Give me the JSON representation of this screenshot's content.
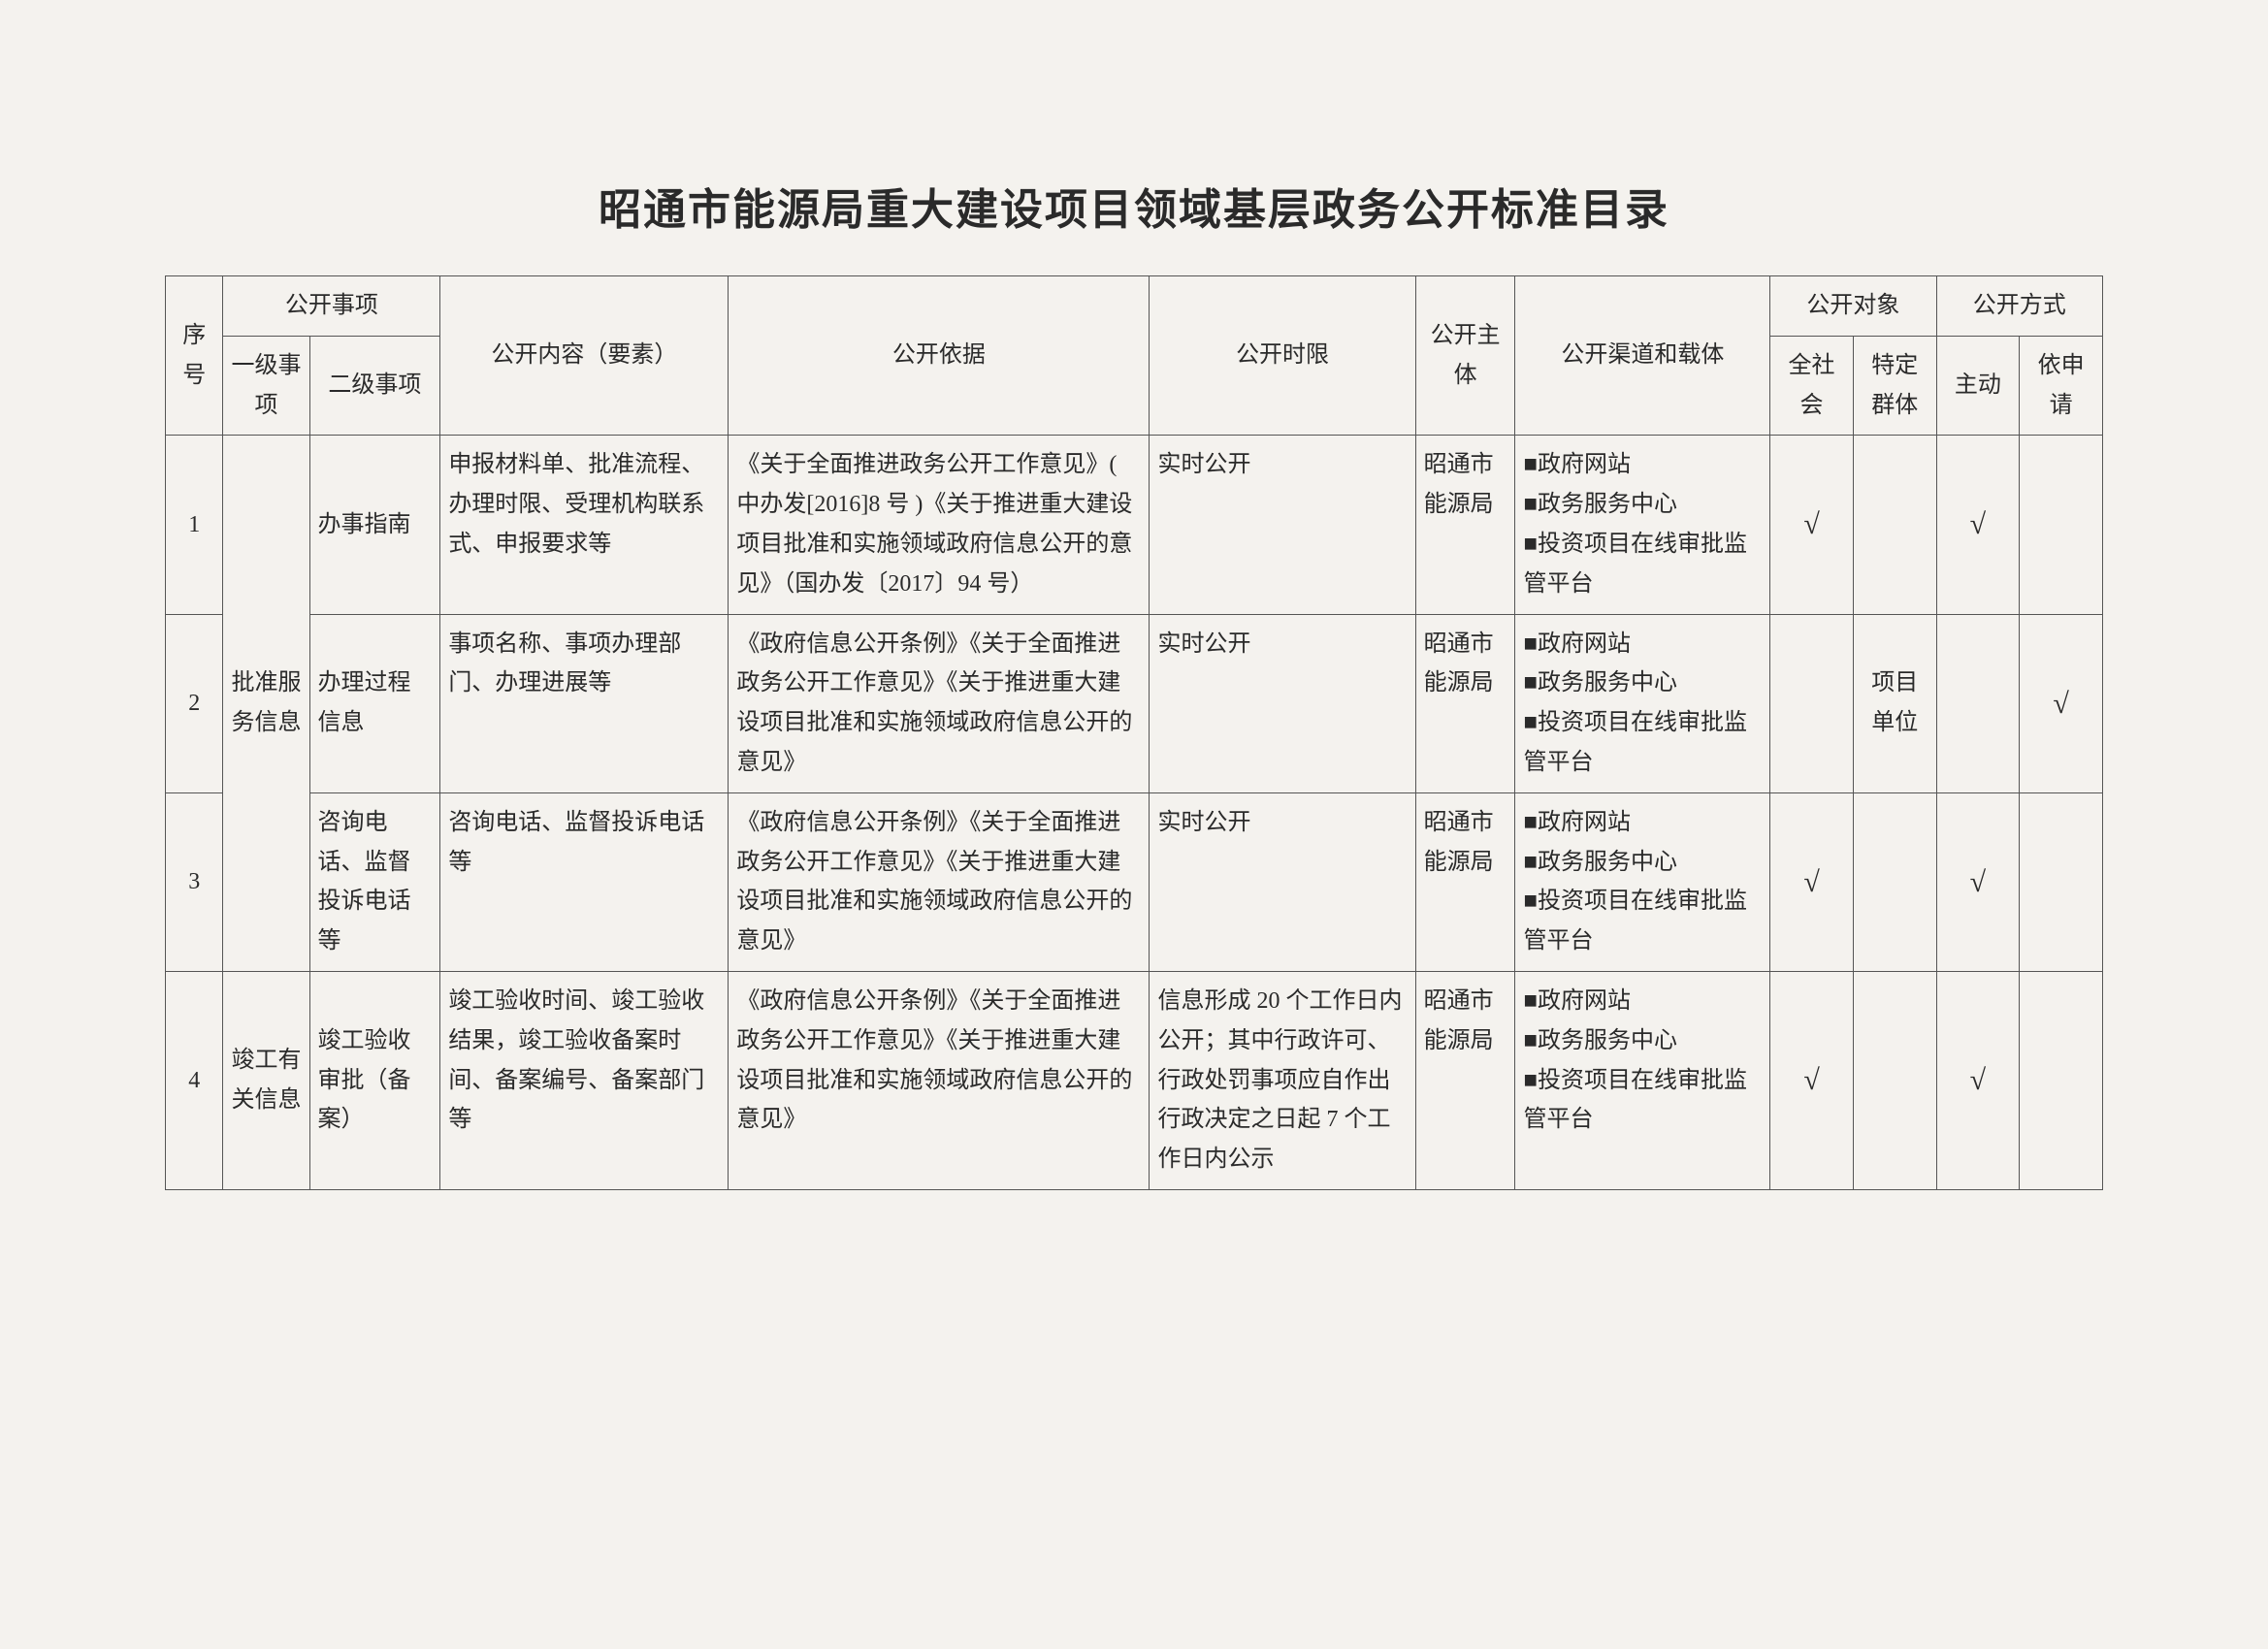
{
  "title": "昭通市能源局重大建设项目领域基层政务公开标准目录",
  "headers": {
    "seq": "序号",
    "matters": "公开事项",
    "lvl1": "一级事项",
    "lvl2": "二级事项",
    "content": "公开内容（要素）",
    "basis": "公开依据",
    "timelimit": "公开时限",
    "subject": "公开主体",
    "channel": "公开渠道和载体",
    "audience": "公开对象",
    "aud_all": "全社会",
    "aud_spec": "特定群体",
    "mode": "公开方式",
    "mode_active": "主动",
    "mode_apply": "依申请"
  },
  "checkmark": "√",
  "lvl1_group1": "批准服务信息",
  "lvl1_group2": "竣工有关信息",
  "subject_common": "昭通市能源局",
  "channel_common": "■政府网站\n■政务服务中心\n■投资项目在线审批监管平台",
  "rows": [
    {
      "seq": "1",
      "lvl2": "办事指南",
      "content": "申报材料单、批准流程、办理时限、受理机构联系式、申报要求等",
      "basis": "《关于全面推进政务公开工作意见》( 中办发[2016]8 号 )《关于推进重大建设项目批准和实施领域政府信息公开的意见》（国办发〔2017〕94 号）",
      "timelimit": "实时公开",
      "aud_all": "√",
      "aud_spec": "",
      "mode_active": "√",
      "mode_apply": ""
    },
    {
      "seq": "2",
      "lvl2": "办理过程信息",
      "content": "事项名称、事项办理部门、办理进展等",
      "basis": "《政府信息公开条例》《关于全面推进政务公开工作意见》《关于推进重大建设项目批准和实施领域政府信息公开的意见》",
      "timelimit": "实时公开",
      "aud_all": "",
      "aud_spec": "项目单位",
      "mode_active": "",
      "mode_apply": "√"
    },
    {
      "seq": "3",
      "lvl2": "咨询电话、监督投诉电话等",
      "content": "咨询电话、监督投诉电话等",
      "basis": "《政府信息公开条例》《关于全面推进政务公开工作意见》《关于推进重大建设项目批准和实施领域政府信息公开的意见》",
      "timelimit": "实时公开",
      "aud_all": "√",
      "aud_spec": "",
      "mode_active": "√",
      "mode_apply": ""
    },
    {
      "seq": "4",
      "lvl2": "竣工验收审批（备案）",
      "content": "竣工验收时间、竣工验收结果，竣工验收备案时间、备案编号、备案部门等",
      "basis": "《政府信息公开条例》《关于全面推进政务公开工作意见》《关于推进重大建设项目批准和实施领域政府信息公开的意见》",
      "timelimit": "信息形成 20 个工作日内公开；其中行政许可、行政处罚事项应自作出行政决定之日起 7 个工作日内公示",
      "aud_all": "√",
      "aud_spec": "",
      "mode_active": "√",
      "mode_apply": ""
    }
  ]
}
